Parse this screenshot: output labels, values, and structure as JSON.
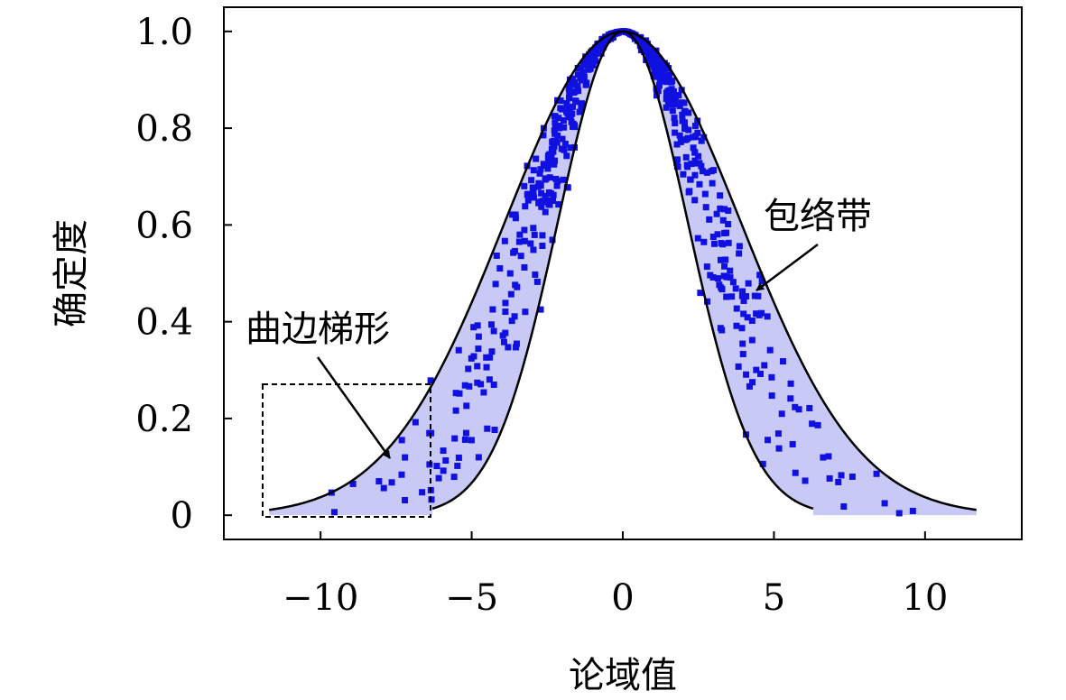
{
  "chart_data": {
    "type": "area",
    "title": "",
    "xlabel": "论域值",
    "ylabel": "确定度",
    "xlim": [
      -13.2,
      13.2
    ],
    "ylim": [
      -0.05,
      1.05
    ],
    "x_ticks": [
      {
        "value": -10,
        "label": "−10"
      },
      {
        "value": -5,
        "label": "−5"
      },
      {
        "value": 0,
        "label": "0"
      },
      {
        "value": 5,
        "label": "5"
      },
      {
        "value": 10,
        "label": "10"
      }
    ],
    "y_ticks": [
      {
        "value": 0,
        "label": "0"
      },
      {
        "value": 0.2,
        "label": "0.2"
      },
      {
        "value": 0.4,
        "label": "0.4"
      },
      {
        "value": 0.6,
        "label": "0.6"
      },
      {
        "value": 0.8,
        "label": "0.8"
      },
      {
        "value": 1.0,
        "label": "1.0"
      }
    ],
    "grid": false,
    "series": [
      {
        "role": "outer-envelope",
        "kind": "gaussian",
        "mean": 0,
        "sigma": 3.9,
        "x_range": [
          -11.7,
          11.7
        ]
      },
      {
        "role": "inner-envelope",
        "kind": "gaussian",
        "mean": 0,
        "sigma": 2.15,
        "x_range": [
          -6.3,
          6.3
        ]
      },
      {
        "role": "band-fill",
        "color": "#c8caf5"
      },
      {
        "role": "cloud-drops",
        "kind": "scatter",
        "color": "#1010e0",
        "count": 700
      }
    ],
    "annotations": [
      {
        "text": "包络带",
        "target": [
          4.3,
          0.45
        ]
      },
      {
        "text": "曲边梯形",
        "target": [
          -7.6,
          0.12
        ],
        "region_x": [
          -11.7,
          -6.25
        ],
        "region_y": [
          0,
          0.27
        ]
      }
    ]
  }
}
